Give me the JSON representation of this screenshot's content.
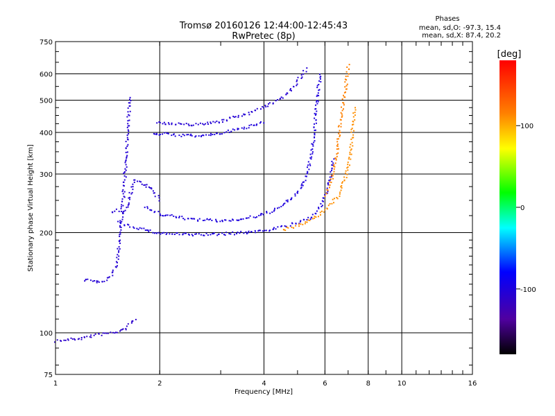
{
  "chart_data": {
    "type": "scatter",
    "title": "Tromsø 20160126 12:44:00-12:45:43",
    "subtitle": "RwPretec (8p)",
    "xlabel": "Frequency [MHz]",
    "ylabel": "Stationary phase Virtual Height [km]",
    "xscale": "log",
    "yscale": "log",
    "xlim": [
      1,
      16
    ],
    "ylim": [
      75,
      750
    ],
    "grid": true,
    "x_ticks": [
      1,
      2,
      4,
      6,
      8,
      10,
      16
    ],
    "x_tick_labels": [
      "1",
      "2",
      "4",
      "6",
      "8",
      "10",
      "16"
    ],
    "y_ticks": [
      75,
      100,
      200,
      300,
      400,
      500,
      600,
      750
    ],
    "y_tick_labels": [
      "75",
      "100",
      "200",
      "300",
      "400",
      "500",
      "600",
      "750"
    ],
    "phases": {
      "heading": "Phases",
      "line_o": "mean, sd,O: -97.3, 15.4",
      "line_x": "mean, sd,X: 87.4, 20.2"
    },
    "colorbar": {
      "label": "[deg]",
      "range": [
        -180,
        180
      ],
      "ticks": [
        100,
        0,
        -100
      ],
      "tick_labels": [
        "100",
        "0",
        "-100"
      ]
    },
    "traces": [
      {
        "phase": -110,
        "points": [
          [
            1.0,
            95
          ],
          [
            1.1,
            96
          ],
          [
            1.2,
            97
          ],
          [
            1.3,
            99
          ],
          [
            1.4,
            100
          ],
          [
            1.5,
            101
          ],
          [
            1.6,
            104
          ],
          [
            1.65,
            108
          ],
          [
            1.7,
            112
          ]
        ]
      },
      {
        "phase": -105,
        "points": [
          [
            1.2,
            145
          ],
          [
            1.3,
            143
          ],
          [
            1.4,
            145
          ],
          [
            1.45,
            150
          ],
          [
            1.5,
            165
          ],
          [
            1.52,
            190
          ],
          [
            1.55,
            230
          ],
          [
            1.58,
            300
          ],
          [
            1.6,
            380
          ],
          [
            1.62,
            450
          ],
          [
            1.63,
            520
          ]
        ]
      },
      {
        "phase": -105,
        "points": [
          [
            1.45,
            230
          ],
          [
            1.5,
            235
          ],
          [
            1.55,
            230
          ],
          [
            1.6,
            240
          ],
          [
            1.65,
            270
          ],
          [
            1.7,
            290
          ],
          [
            1.8,
            280
          ],
          [
            1.9,
            270
          ],
          [
            2.0,
            250
          ]
        ]
      },
      {
        "phase": -100,
        "points": [
          [
            1.5,
            215
          ],
          [
            1.6,
            212
          ],
          [
            1.7,
            208
          ],
          [
            1.8,
            205
          ],
          [
            1.9,
            202
          ],
          [
            2.0,
            200
          ],
          [
            2.5,
            198
          ],
          [
            3.0,
            199
          ],
          [
            3.5,
            201
          ],
          [
            4.0,
            204
          ],
          [
            4.5,
            209
          ],
          [
            5.0,
            215
          ],
          [
            5.5,
            225
          ],
          [
            5.8,
            240
          ],
          [
            6.0,
            262
          ],
          [
            6.2,
            290
          ],
          [
            6.3,
            340
          ]
        ]
      },
      {
        "phase": -100,
        "points": [
          [
            1.8,
            240
          ],
          [
            2.0,
            228
          ],
          [
            2.5,
            220
          ],
          [
            3.0,
            218
          ],
          [
            3.5,
            221
          ],
          [
            4.0,
            228
          ],
          [
            4.5,
            242
          ],
          [
            5.0,
            265
          ],
          [
            5.3,
            300
          ],
          [
            5.5,
            360
          ],
          [
            5.6,
            430
          ],
          [
            5.7,
            530
          ],
          [
            5.8,
            610
          ]
        ]
      },
      {
        "phase": -100,
        "points": [
          [
            1.9,
            400
          ],
          [
            2.2,
            395
          ],
          [
            2.6,
            392
          ],
          [
            3.0,
            400
          ],
          [
            3.5,
            415
          ],
          [
            4.0,
            435
          ]
        ]
      },
      {
        "phase": -105,
        "points": [
          [
            1.95,
            430
          ],
          [
            2.2,
            425
          ],
          [
            2.6,
            425
          ],
          [
            3.0,
            435
          ],
          [
            3.5,
            455
          ],
          [
            4.0,
            480
          ],
          [
            4.5,
            510
          ],
          [
            4.9,
            560
          ],
          [
            5.3,
            630
          ]
        ]
      },
      {
        "phase": 110,
        "points": [
          [
            4.5,
            205
          ],
          [
            5.0,
            210
          ],
          [
            5.5,
            220
          ],
          [
            6.0,
            235
          ],
          [
            6.5,
            258
          ],
          [
            6.8,
            290
          ],
          [
            7.0,
            320
          ],
          [
            7.1,
            360
          ],
          [
            7.2,
            420
          ],
          [
            7.3,
            480
          ]
        ]
      },
      {
        "phase": 115,
        "points": [
          [
            6.0,
            260
          ],
          [
            6.3,
            300
          ],
          [
            6.5,
            360
          ],
          [
            6.6,
            430
          ],
          [
            6.8,
            520
          ],
          [
            7.0,
            650
          ]
        ]
      }
    ]
  }
}
